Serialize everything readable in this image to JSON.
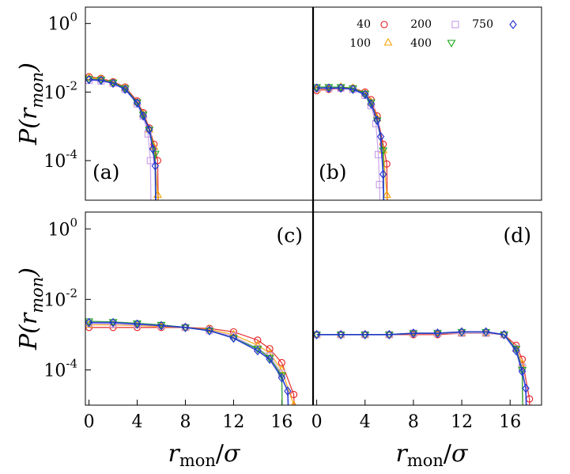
{
  "figure": {
    "y_title": {
      "symbol": "P(r",
      "subscript": "mon",
      "close": ")"
    },
    "x_title": {
      "symbol": "r",
      "subscript": "mon",
      "slash": "/",
      "sigma": "σ"
    },
    "legend": [
      {
        "label": "40",
        "marker": "circle",
        "color": "#e41a1c"
      },
      {
        "label": "100",
        "marker": "triangle-up",
        "color": "#f5a300"
      },
      {
        "label": "200",
        "marker": "square",
        "color": "#c79be8"
      },
      {
        "label": "400",
        "marker": "triangle-down",
        "color": "#19a319"
      },
      {
        "label": "750",
        "marker": "diamond",
        "color": "#1f2fd6"
      }
    ]
  },
  "chart_data": [
    {
      "type": "scatter",
      "panel": "(a)",
      "yscale": "log",
      "xlim": [
        -0.3,
        18.6
      ],
      "ylim": [
        7e-06,
        3
      ],
      "y_ticks": [
        {
          "base": "10",
          "exp": "0",
          "value": 1
        },
        {
          "base": "10",
          "exp": "-2",
          "value": 0.01
        },
        {
          "base": "10",
          "exp": "-4",
          "value": 0.0001
        }
      ],
      "x_ticks": [],
      "cutoff": 5.2,
      "series": [
        {
          "name": "40",
          "values_at_x": [
            [
              0,
              0.028
            ],
            [
              1,
              0.025
            ],
            [
              2,
              0.02
            ],
            [
              3,
              0.014
            ],
            [
              4,
              0.0055
            ],
            [
              4.5,
              0.0025
            ],
            [
              5,
              0.0009
            ],
            [
              5.4,
              0.0003
            ],
            [
              5.7,
              0.0001
            ]
          ]
        },
        {
          "name": "100",
          "values_at_x": [
            [
              0,
              0.026
            ],
            [
              1,
              0.024
            ],
            [
              2,
              0.019
            ],
            [
              3,
              0.013
            ],
            [
              4,
              0.005
            ],
            [
              4.5,
              0.0022
            ],
            [
              5,
              0.0008
            ],
            [
              5.4,
              0.00025
            ],
            [
              5.7,
              1e-05
            ]
          ]
        },
        {
          "name": "200",
          "values_at_x": [
            [
              0,
              0.022
            ],
            [
              1,
              0.021
            ],
            [
              2,
              0.018
            ],
            [
              3,
              0.012
            ],
            [
              4,
              0.0045
            ],
            [
              4.5,
              0.002
            ],
            [
              4.9,
              0.0006
            ],
            [
              5.1,
              0.0001
            ]
          ]
        },
        {
          "name": "400",
          "values_at_x": [
            [
              0,
              0.024
            ],
            [
              1,
              0.023
            ],
            [
              2,
              0.019
            ],
            [
              3,
              0.013
            ],
            [
              4,
              0.005
            ],
            [
              4.5,
              0.0022
            ],
            [
              5,
              0.0008
            ],
            [
              5.5,
              0.00016
            ]
          ]
        },
        {
          "name": "750",
          "values_at_x": [
            [
              0,
              0.023
            ],
            [
              1,
              0.022
            ],
            [
              2,
              0.018
            ],
            [
              3,
              0.012
            ],
            [
              4,
              0.0048
            ],
            [
              4.5,
              0.002
            ],
            [
              5,
              0.0008
            ],
            [
              5.3,
              0.00022
            ],
            [
              5.5,
              7e-05
            ]
          ]
        }
      ]
    },
    {
      "type": "scatter",
      "panel": "(b)",
      "yscale": "log",
      "xlim": [
        -0.3,
        18.6
      ],
      "ylim": [
        7e-06,
        3
      ],
      "y_ticks": [],
      "x_ticks": [],
      "cutoff": 5.5,
      "series": [
        {
          "name": "40",
          "values_at_x": [
            [
              0,
              0.011
            ],
            [
              1,
              0.012
            ],
            [
              2,
              0.013
            ],
            [
              3,
              0.013
            ],
            [
              4,
              0.01
            ],
            [
              4.5,
              0.006
            ],
            [
              5,
              0.002
            ],
            [
              5.5,
              0.0003
            ],
            [
              5.8,
              8e-05
            ]
          ]
        },
        {
          "name": "100",
          "values_at_x": [
            [
              0,
              0.012
            ],
            [
              1,
              0.013
            ],
            [
              2,
              0.014
            ],
            [
              3,
              0.013
            ],
            [
              4,
              0.009
            ],
            [
              4.5,
              0.005
            ],
            [
              5,
              0.0017
            ],
            [
              5.5,
              0.0002
            ],
            [
              5.8,
              1e-05
            ]
          ]
        },
        {
          "name": "200",
          "values_at_x": [
            [
              0,
              0.013
            ],
            [
              1,
              0.013
            ],
            [
              2,
              0.013
            ],
            [
              3,
              0.012
            ],
            [
              4,
              0.008
            ],
            [
              4.5,
              0.004
            ],
            [
              4.9,
              0.0012
            ],
            [
              5.1,
              0.00015
            ],
            [
              5.2,
              2e-05
            ]
          ]
        },
        {
          "name": "400",
          "values_at_x": [
            [
              0,
              0.014
            ],
            [
              1,
              0.014
            ],
            [
              2,
              0.014
            ],
            [
              3,
              0.013
            ],
            [
              4,
              0.009
            ],
            [
              4.5,
              0.005
            ],
            [
              5,
              0.0015
            ],
            [
              5.5,
              0.0002
            ]
          ]
        },
        {
          "name": "750",
          "values_at_x": [
            [
              0,
              0.013
            ],
            [
              1,
              0.013
            ],
            [
              2,
              0.013
            ],
            [
              3,
              0.012
            ],
            [
              4,
              0.0085
            ],
            [
              4.5,
              0.0045
            ],
            [
              5,
              0.0015
            ],
            [
              5.3,
              0.0005
            ],
            [
              5.5,
              4e-05
            ]
          ]
        }
      ]
    },
    {
      "type": "scatter",
      "panel": "(c)",
      "yscale": "log",
      "xlim": [
        -0.3,
        18.6
      ],
      "ylim": [
        1e-05,
        3
      ],
      "y_ticks": [
        {
          "base": "10",
          "exp": "0",
          "value": 1
        },
        {
          "base": "10",
          "exp": "-2",
          "value": 0.01
        },
        {
          "base": "10",
          "exp": "-4",
          "value": 0.0001
        }
      ],
      "x_ticks": [
        0,
        4,
        8,
        12,
        16
      ],
      "cutoff": 17.4,
      "series": [
        {
          "name": "40",
          "values_at_x": [
            [
              0,
              0.0016
            ],
            [
              2,
              0.0016
            ],
            [
              4,
              0.0016
            ],
            [
              6,
              0.0016
            ],
            [
              8,
              0.0016
            ],
            [
              10,
              0.0015
            ],
            [
              12,
              0.0012
            ],
            [
              14,
              0.0007
            ],
            [
              15,
              0.0004
            ],
            [
              16,
              0.00016
            ],
            [
              17,
              2e-05
            ]
          ]
        },
        {
          "name": "100",
          "values_at_x": [
            [
              0,
              0.0019
            ],
            [
              2,
              0.0019
            ],
            [
              4,
              0.0018
            ],
            [
              6,
              0.0017
            ],
            [
              8,
              0.0016
            ],
            [
              10,
              0.0014
            ],
            [
              12,
              0.001
            ],
            [
              14,
              0.0005
            ],
            [
              15,
              0.0003
            ],
            [
              16,
              0.0001
            ],
            [
              17,
              1e-05
            ]
          ]
        },
        {
          "name": "200",
          "values_at_x": [
            [
              0,
              0.0021
            ],
            [
              2,
              0.002
            ],
            [
              4,
              0.0019
            ],
            [
              6,
              0.0018
            ],
            [
              8,
              0.0016
            ],
            [
              10,
              0.0013
            ],
            [
              12,
              0.0009
            ],
            [
              14,
              0.0004
            ],
            [
              15,
              0.00025
            ],
            [
              16,
              8e-05
            ]
          ]
        },
        {
          "name": "400",
          "values_at_x": [
            [
              0,
              0.0024
            ],
            [
              2,
              0.0023
            ],
            [
              4,
              0.0021
            ],
            [
              6,
              0.0019
            ],
            [
              8,
              0.0016
            ],
            [
              10,
              0.0013
            ],
            [
              12,
              0.0008
            ],
            [
              14,
              0.0004
            ],
            [
              15,
              0.00022
            ],
            [
              16,
              7e-05
            ]
          ]
        },
        {
          "name": "750",
          "values_at_x": [
            [
              0,
              0.0022
            ],
            [
              2,
              0.0022
            ],
            [
              4,
              0.002
            ],
            [
              6,
              0.0018
            ],
            [
              8,
              0.0016
            ],
            [
              10,
              0.0013
            ],
            [
              12,
              0.0008
            ],
            [
              14,
              0.00035
            ],
            [
              15,
              0.0002
            ],
            [
              16,
              6e-05
            ],
            [
              16.5,
              2.5e-05
            ]
          ]
        }
      ]
    },
    {
      "type": "scatter",
      "panel": "(d)",
      "yscale": "log",
      "xlim": [
        -0.3,
        18.6
      ],
      "ylim": [
        1e-05,
        3
      ],
      "y_ticks": [],
      "x_ticks": [
        0,
        4,
        8,
        12,
        16
      ],
      "cutoff": 17.5,
      "series": [
        {
          "name": "40",
          "values_at_x": [
            [
              0,
              0.001
            ],
            [
              2,
              0.001
            ],
            [
              4,
              0.001
            ],
            [
              6,
              0.001
            ],
            [
              8,
              0.001
            ],
            [
              10,
              0.001
            ],
            [
              12,
              0.0011
            ],
            [
              14,
              0.0011
            ],
            [
              15.5,
              0.001
            ],
            [
              16.5,
              0.0005
            ],
            [
              17,
              0.0002
            ],
            [
              17.6,
              1.5e-05
            ]
          ]
        },
        {
          "name": "100",
          "values_at_x": [
            [
              0,
              0.001
            ],
            [
              2,
              0.001
            ],
            [
              4,
              0.001
            ],
            [
              6,
              0.001
            ],
            [
              8,
              0.0011
            ],
            [
              10,
              0.0011
            ],
            [
              12,
              0.0011
            ],
            [
              14,
              0.0011
            ],
            [
              15.5,
              0.001
            ],
            [
              16.5,
              0.0004
            ],
            [
              17,
              0.00015
            ]
          ]
        },
        {
          "name": "200",
          "values_at_x": [
            [
              0,
              0.001
            ],
            [
              2,
              0.001
            ],
            [
              4,
              0.001
            ],
            [
              6,
              0.001
            ],
            [
              8,
              0.0011
            ],
            [
              10,
              0.0011
            ],
            [
              12,
              0.0011
            ],
            [
              14,
              0.0011
            ],
            [
              15.5,
              0.001
            ],
            [
              16.5,
              0.0004
            ],
            [
              17,
              0.00012
            ]
          ]
        },
        {
          "name": "400",
          "values_at_x": [
            [
              0,
              0.001
            ],
            [
              2,
              0.001
            ],
            [
              4,
              0.001
            ],
            [
              6,
              0.001
            ],
            [
              8,
              0.0011
            ],
            [
              10,
              0.0011
            ],
            [
              12,
              0.0012
            ],
            [
              14,
              0.0012
            ],
            [
              15.5,
              0.001
            ],
            [
              16.5,
              0.0004
            ],
            [
              17,
              0.0001
            ]
          ]
        },
        {
          "name": "750",
          "values_at_x": [
            [
              0,
              0.001
            ],
            [
              2,
              0.001
            ],
            [
              4,
              0.001
            ],
            [
              6,
              0.001
            ],
            [
              8,
              0.0011
            ],
            [
              10,
              0.0011
            ],
            [
              12,
              0.0012
            ],
            [
              14,
              0.0012
            ],
            [
              15.5,
              0.001
            ],
            [
              16.5,
              0.00035
            ],
            [
              17,
              9e-05
            ],
            [
              17.3,
              3e-05
            ]
          ]
        }
      ]
    }
  ]
}
